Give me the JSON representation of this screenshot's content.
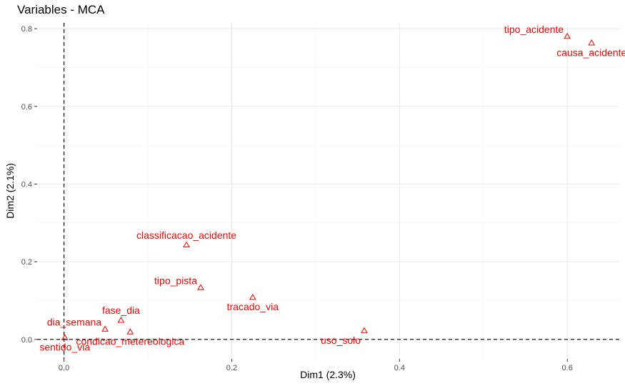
{
  "chart_data": {
    "type": "scatter",
    "title": "Variables - MCA",
    "xlabel": "Dim1 (2.3%)",
    "ylabel": "Dim2 (2.1%)",
    "xlim": [
      -0.032,
      0.662
    ],
    "ylim": [
      -0.05,
      0.815
    ],
    "x_ticks": [
      0.0,
      0.2,
      0.4,
      0.6
    ],
    "x_tick_labels": [
      "0.0",
      "0.2",
      "0.4",
      "0.6"
    ],
    "y_ticks": [
      0.0,
      0.2,
      0.4,
      0.6,
      0.8
    ],
    "y_tick_labels": [
      "0.0",
      "0.2",
      "0.4",
      "0.6",
      "0.8"
    ],
    "grid": true,
    "reference_lines": {
      "x": 0,
      "y": 0,
      "style": "dashed"
    },
    "point_color": "#ff0000",
    "marker": "triangle-open",
    "points": [
      {
        "label": "tipo_acidente",
        "x": 0.6,
        "y": 0.78,
        "label_pos": "above-left"
      },
      {
        "label": "causa_acidente",
        "x": 0.629,
        "y": 0.763,
        "label_pos": "below"
      },
      {
        "label": "classificacao_acidente",
        "x": 0.146,
        "y": 0.243,
        "label_pos": "above"
      },
      {
        "label": "tipo_pista",
        "x": 0.163,
        "y": 0.133,
        "label_pos": "above-left"
      },
      {
        "label": "tracado_via",
        "x": 0.225,
        "y": 0.108,
        "label_pos": "below"
      },
      {
        "label": "fase_dia",
        "x": 0.068,
        "y": 0.049,
        "label_pos": "above"
      },
      {
        "label": "dia_semana",
        "x": 0.049,
        "y": 0.026,
        "label_pos": "above-left"
      },
      {
        "label": "condicao_metereologica",
        "x": 0.079,
        "y": 0.019,
        "label_pos": "below"
      },
      {
        "label": "uso_solo",
        "x": 0.358,
        "y": 0.022,
        "label_pos": "below-left"
      },
      {
        "label": "sentido_via",
        "x": 0.001,
        "y": 0.004,
        "label_pos": "below"
      }
    ]
  }
}
